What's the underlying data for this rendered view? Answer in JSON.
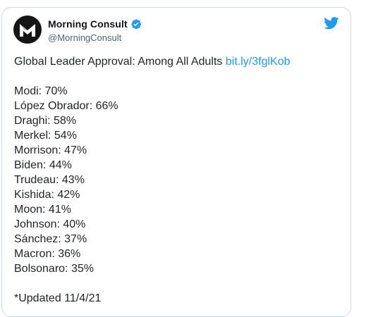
{
  "tweet": {
    "author_name": "Morning Consult",
    "handle": "@MorningConsult",
    "headline": "Global Leader Approval: Among All Adults",
    "link_text": "bit.ly/3fglKob",
    "approvals": [
      "Modi: 70%",
      "López Obrador: 66%",
      "Draghi: 58%",
      "Merkel: 54%",
      "Morrison: 47%",
      "Biden: 44%",
      "Trudeau: 43%",
      "Kishida: 42%",
      "Moon: 41%",
      "Johnson: 40%",
      "Sánchez: 37%",
      "Macron: 36%",
      "Bolsonaro: 35%"
    ],
    "footnote": "*Updated 11/4/21"
  },
  "icons": {
    "avatar": "morning-consult-logo",
    "verified": "verified-badge-icon",
    "platform": "twitter-bird-icon"
  },
  "colors": {
    "link": "#1d9bf0",
    "verified": "#1d9bf0",
    "avatar_bg": "#151515",
    "text": "#1e2326",
    "handle": "#536471"
  }
}
